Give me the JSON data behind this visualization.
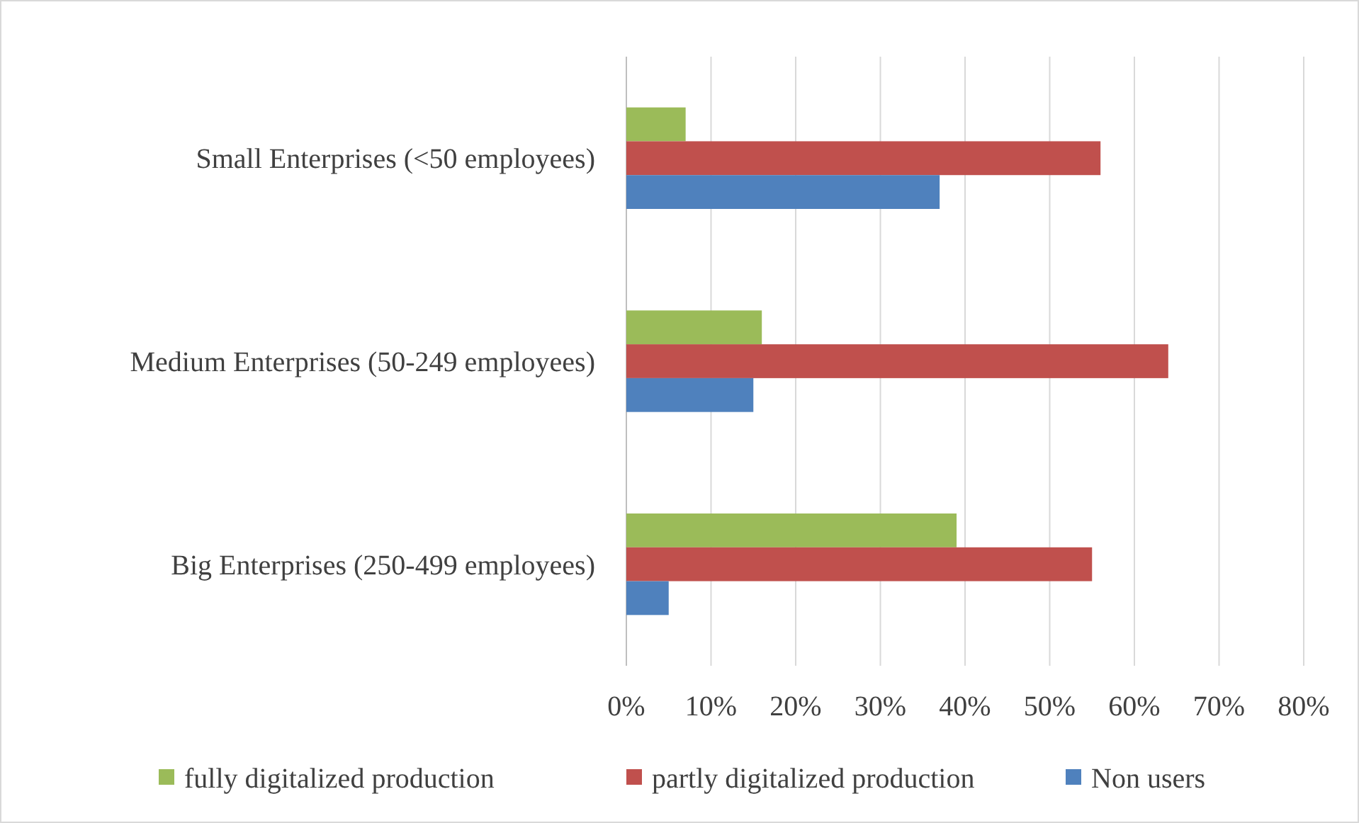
{
  "chart_data": {
    "type": "bar",
    "orientation": "horizontal",
    "categories": [
      "Small Enterprises (<50 employees)",
      "Medium Enterprises (50-249 employees)",
      "Big Enterprises (250-499 employees)"
    ],
    "series": [
      {
        "name": "fully digitalized production",
        "color": "#9bbb59",
        "values": [
          7,
          16,
          39
        ]
      },
      {
        "name": "partly digitalized production",
        "color": "#c0504d",
        "values": [
          56,
          64,
          55
        ]
      },
      {
        "name": "Non users",
        "color": "#4f81bd",
        "values": [
          37,
          15,
          5
        ]
      }
    ],
    "xlim": [
      0,
      80
    ],
    "xticks": [
      {
        "value": 0,
        "label": "0%"
      },
      {
        "value": 10,
        "label": "10%"
      },
      {
        "value": 20,
        "label": "20%"
      },
      {
        "value": 30,
        "label": "30%"
      },
      {
        "value": 40,
        "label": "40%"
      },
      {
        "value": 50,
        "label": "50%"
      },
      {
        "value": 60,
        "label": "60%"
      },
      {
        "value": 70,
        "label": "70%"
      },
      {
        "value": 80,
        "label": "80%"
      }
    ],
    "grid": "x",
    "legend": "bottom"
  }
}
